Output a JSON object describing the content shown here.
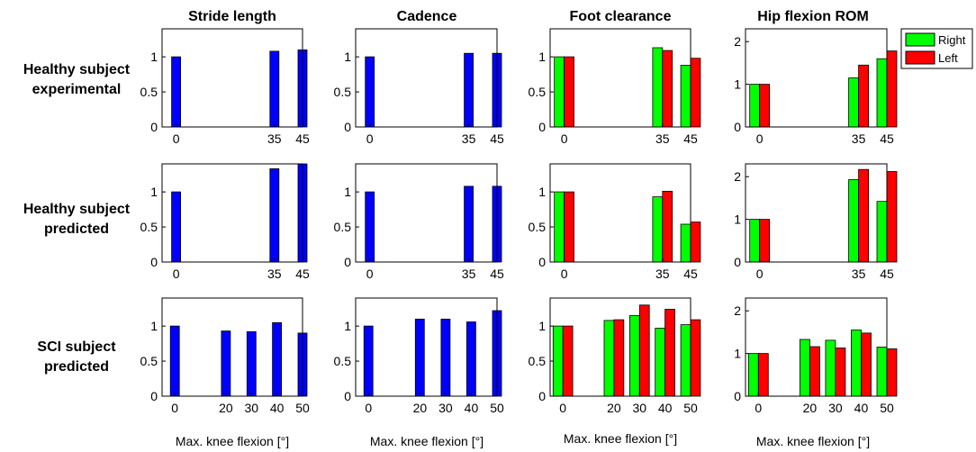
{
  "chart_data": {
    "type": "bar",
    "layout": "grid-3x4",
    "columns": [
      "Stride length",
      "Cadence",
      "Foot clearance",
      "Hip flexion ROM"
    ],
    "rows": [
      {
        "label_lines": [
          "Healthy subject",
          "experimental"
        ]
      },
      {
        "label_lines": [
          "Healthy subject",
          "predicted"
        ]
      },
      {
        "label_lines": [
          "SCI subject",
          "predicted"
        ]
      }
    ],
    "xlabel": "Max. knee flexion [°]",
    "legend": {
      "position": "top-right",
      "entries": [
        {
          "name": "Right",
          "color": "#00ff00"
        },
        {
          "name": "Left",
          "color": "#ff0000"
        }
      ]
    },
    "colors": {
      "single": "#0000ff",
      "right": "#00ff00",
      "left": "#ff0000"
    },
    "panels": [
      [
        {
          "x_categories": [
            "0",
            "35",
            "45"
          ],
          "ylim": [
            0,
            1.4
          ],
          "yticks": [
            "0",
            "0.5",
            "1"
          ],
          "series": [
            {
              "name": "single",
              "values": [
                1.0,
                1.08,
                1.1
              ]
            }
          ]
        },
        {
          "x_categories": [
            "0",
            "35",
            "45"
          ],
          "ylim": [
            0,
            1.4
          ],
          "yticks": [
            "0",
            "0.5",
            "1"
          ],
          "series": [
            {
              "name": "single",
              "values": [
                1.0,
                1.05,
                1.05
              ]
            }
          ]
        },
        {
          "x_categories": [
            "0",
            "35",
            "45"
          ],
          "ylim": [
            0,
            1.4
          ],
          "yticks": [
            "0",
            "0.5",
            "1"
          ],
          "series": [
            {
              "name": "Right",
              "values": [
                1.0,
                1.13,
                0.88
              ]
            },
            {
              "name": "Left",
              "values": [
                1.0,
                1.09,
                0.98
              ]
            }
          ]
        },
        {
          "x_categories": [
            "0",
            "35",
            "45"
          ],
          "ylim": [
            0,
            2.3
          ],
          "yticks": [
            "0",
            "1",
            "2"
          ],
          "series": [
            {
              "name": "Right",
              "values": [
                1.0,
                1.15,
                1.6
              ]
            },
            {
              "name": "Left",
              "values": [
                1.0,
                1.45,
                1.78
              ]
            }
          ]
        }
      ],
      [
        {
          "x_categories": [
            "0",
            "35",
            "45"
          ],
          "ylim": [
            0,
            1.4
          ],
          "yticks": [
            "0",
            "0.5",
            "1"
          ],
          "series": [
            {
              "name": "single",
              "values": [
                1.0,
                1.33,
                1.4
              ]
            }
          ]
        },
        {
          "x_categories": [
            "0",
            "35",
            "45"
          ],
          "ylim": [
            0,
            1.4
          ],
          "yticks": [
            "0",
            "0.5",
            "1"
          ],
          "series": [
            {
              "name": "single",
              "values": [
                1.0,
                1.08,
                1.08
              ]
            }
          ]
        },
        {
          "x_categories": [
            "0",
            "35",
            "45"
          ],
          "ylim": [
            0,
            1.4
          ],
          "yticks": [
            "0",
            "0.5",
            "1"
          ],
          "series": [
            {
              "name": "Right",
              "values": [
                1.0,
                0.93,
                0.54
              ]
            },
            {
              "name": "Left",
              "values": [
                1.0,
                1.01,
                0.57
              ]
            }
          ]
        },
        {
          "x_categories": [
            "0",
            "35",
            "45"
          ],
          "ylim": [
            0,
            2.3
          ],
          "yticks": [
            "0",
            "1",
            "2"
          ],
          "series": [
            {
              "name": "Right",
              "values": [
                1.0,
                1.93,
                1.42
              ]
            },
            {
              "name": "Left",
              "values": [
                1.0,
                2.17,
                2.12
              ]
            }
          ]
        }
      ],
      [
        {
          "x_categories": [
            "0",
            "20",
            "30",
            "40",
            "50"
          ],
          "ylim": [
            0,
            1.4
          ],
          "yticks": [
            "0",
            "0.5",
            "1"
          ],
          "series": [
            {
              "name": "single",
              "values": [
                1.0,
                0.93,
                0.92,
                1.05,
                0.9
              ]
            }
          ]
        },
        {
          "x_categories": [
            "0",
            "20",
            "30",
            "40",
            "50"
          ],
          "ylim": [
            0,
            1.4
          ],
          "yticks": [
            "0",
            "0.5",
            "1"
          ],
          "series": [
            {
              "name": "single",
              "values": [
                1.0,
                1.1,
                1.1,
                1.06,
                1.22
              ]
            }
          ]
        },
        {
          "x_categories": [
            "0",
            "20",
            "30",
            "40",
            "50"
          ],
          "ylim": [
            0,
            1.4
          ],
          "yticks": [
            "0",
            "0.5",
            "1"
          ],
          "series": [
            {
              "name": "Right",
              "values": [
                1.0,
                1.08,
                1.15,
                0.97,
                1.02
              ]
            },
            {
              "name": "Left",
              "values": [
                1.0,
                1.09,
                1.3,
                1.24,
                1.09
              ]
            }
          ]
        },
        {
          "x_categories": [
            "0",
            "20",
            "30",
            "40",
            "50"
          ],
          "ylim": [
            0,
            2.3
          ],
          "yticks": [
            "0",
            "1",
            "2"
          ],
          "series": [
            {
              "name": "Right",
              "values": [
                1.0,
                1.33,
                1.31,
                1.55,
                1.15
              ]
            },
            {
              "name": "Left",
              "values": [
                1.0,
                1.16,
                1.13,
                1.48,
                1.11
              ]
            }
          ]
        }
      ]
    ]
  }
}
